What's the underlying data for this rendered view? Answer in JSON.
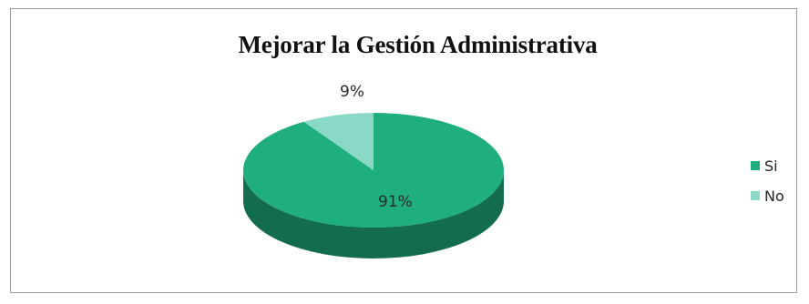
{
  "chart_data": {
    "type": "pie",
    "title": "Mejorar la Gestión Administrativa",
    "categories": [
      "Si",
      "No"
    ],
    "values": [
      91,
      9
    ],
    "labels": [
      "91%",
      "9%"
    ],
    "colors": [
      "#1fae7d",
      "#8ad9c6"
    ],
    "style": "3d",
    "legend_position": "right"
  }
}
